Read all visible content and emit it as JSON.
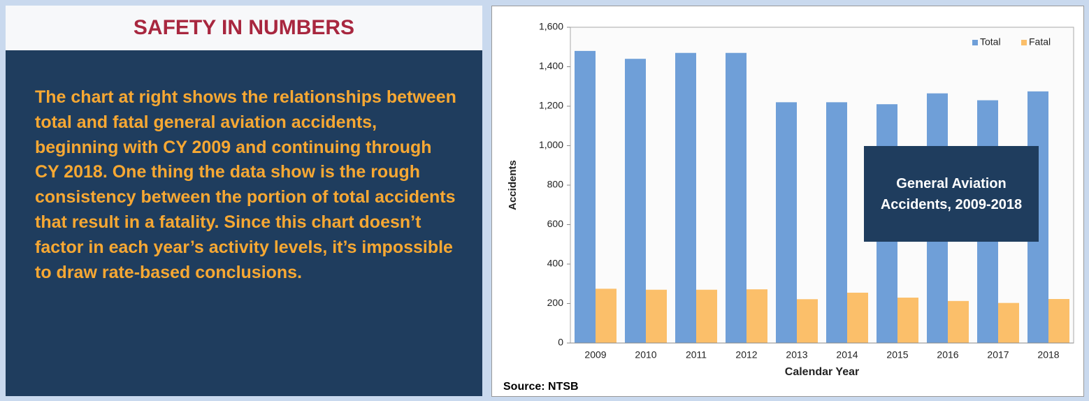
{
  "panel": {
    "title": "SAFETY IN NUMBERS",
    "text": "The chart at right shows the relationships between total and fatal general aviation accidents, beginning with CY 2009 and continuing through CY 2018. One thing the data show is the rough consistency between the portion of total accidents that result in a fatality. Since this chart doesn’t factor in each year’s activity levels, it’s impossible to draw rate-based conclusions."
  },
  "chart_data": {
    "type": "bar",
    "annotation": "General Aviation Accidents, 2009-2018",
    "xlabel": "Calendar Year",
    "ylabel": "Accidents",
    "source": "Source: NTSB",
    "categories": [
      "2009",
      "2010",
      "2011",
      "2012",
      "2013",
      "2014",
      "2015",
      "2016",
      "2017",
      "2018"
    ],
    "series": [
      {
        "name": "Total",
        "color": "#6f9fd8",
        "values": [
          1480,
          1440,
          1470,
          1470,
          1220,
          1220,
          1210,
          1265,
          1230,
          1275
        ]
      },
      {
        "name": "Fatal",
        "color": "#fbbf6a",
        "values": [
          275,
          270,
          270,
          272,
          222,
          255,
          230,
          213,
          203,
          223
        ]
      }
    ],
    "ylim": [
      0,
      1600
    ],
    "yticks": [
      0,
      200,
      400,
      600,
      800,
      {
        "value": 1000,
        "label": "1,000"
      },
      {
        "value": 1200,
        "label": "1,200"
      },
      {
        "value": 1400,
        "label": "1,400"
      },
      {
        "value": 1600,
        "label": "1,600"
      }
    ],
    "legend": "upper right"
  }
}
